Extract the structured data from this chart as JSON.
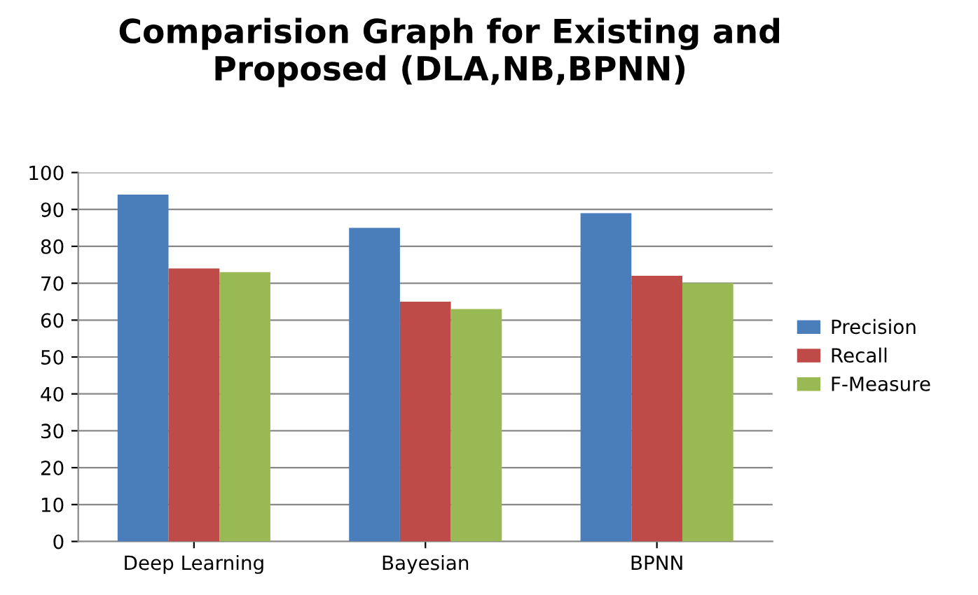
{
  "chart_data": {
    "type": "bar",
    "title": "Comparision Graph for Existing and\nProposed (DLA,NB,BPNN)",
    "categories": [
      "Deep Learning",
      "Bayesian",
      "BPNN"
    ],
    "series": [
      {
        "name": "Precision",
        "color": "#4a7ebb",
        "values": [
          94,
          85,
          89
        ]
      },
      {
        "name": "Recall",
        "color": "#be4b48",
        "values": [
          74,
          65,
          72
        ]
      },
      {
        "name": "F-Measure",
        "color": "#98b954",
        "values": [
          73,
          63,
          70
        ]
      }
    ],
    "ylim": [
      0,
      100
    ],
    "yticks": [
      0,
      10,
      20,
      30,
      40,
      50,
      60,
      70,
      80,
      90,
      100
    ],
    "grid": "y",
    "legend": "right"
  }
}
